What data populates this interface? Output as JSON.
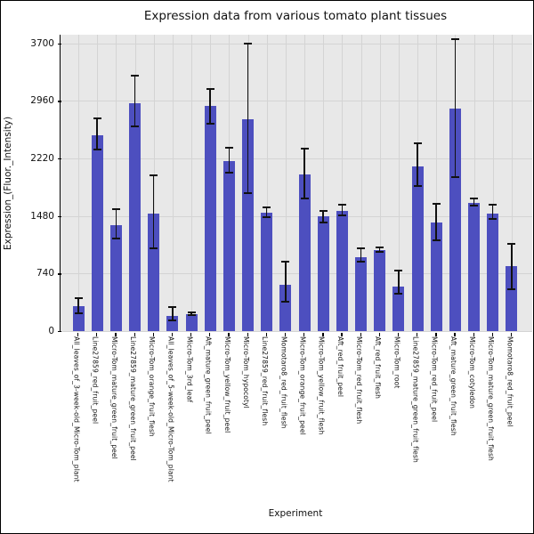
{
  "chart_data": {
    "type": "bar",
    "title": "Expression data from various tomato plant tissues",
    "xlabel": "Experiment",
    "ylabel": "Expression_(Fluor._Intensity)",
    "categories": [
      "All_leaves_of_3-week-old_Micro-Tom_plant",
      "Line27859_red_fruit_peel",
      "Micro-Tom_mature_green_fruit_peel",
      "Line27859_mature_green_fruit_peel",
      "Micro-Tom_orange_fruit_flesh",
      "All_leaves_of_5-week-old_Micro-Tom_plant",
      "Micro-Tom_3rd_leaf",
      "Aft_mature_green_fruit_peel",
      "Micro-Tom_yellow_fruit_peel",
      "Micro-Tom_hypocotyl",
      "Line27859_red_fruit_flesh",
      "Momotaro8_red_fruit_flesh",
      "Micro-Tom_orange_fruit_peel",
      "Micro-Tom_yellow_fruit_flesh",
      "Aft_red_fruit_peel",
      "Micro-Tom_red_fruit_flesh",
      "Aft_red_fruit_flesh",
      "Micro-Tom_root",
      "Line27859_mature_green_fruit_flesh",
      "Micro-Tom_red_fruit_peel",
      "Aft_mature_green_fruit_flesh",
      "Micro-Tom_cotyledon",
      "Micro-Tom_mature_green_fruit_flesh",
      "Momotaro8_red_fruit_peel"
    ],
    "values": [
      320,
      2520,
      1360,
      2930,
      1510,
      200,
      220,
      2890,
      2180,
      2720,
      1520,
      600,
      2010,
      1480,
      1550,
      950,
      1040,
      570,
      2120,
      1400,
      2860,
      1650,
      1510,
      840
    ],
    "error_low": [
      230,
      2330,
      1190,
      2630,
      1060,
      140,
      205,
      2670,
      2040,
      1770,
      1460,
      380,
      1710,
      1400,
      1490,
      890,
      1020,
      480,
      1860,
      1170,
      1980,
      1610,
      1440,
      540
    ],
    "error_high": [
      420,
      2740,
      1570,
      3280,
      2000,
      310,
      240,
      3110,
      2360,
      3700,
      1590,
      890,
      2340,
      1550,
      1620,
      1060,
      1080,
      780,
      2410,
      1640,
      3750,
      1710,
      1630,
      1120
    ],
    "yticks": [
      0,
      740,
      1480,
      2220,
      2960,
      3700
    ],
    "ylim": [
      0,
      3810
    ],
    "grid": true,
    "legend": "none",
    "bar_color": "#4d4fbf",
    "plot_bg": "#e8e8e8",
    "grid_color": "#d4d4d4",
    "error_color": "#111111"
  }
}
